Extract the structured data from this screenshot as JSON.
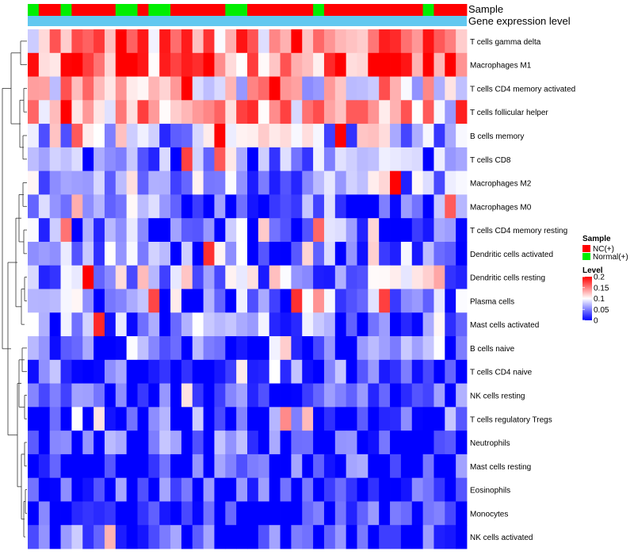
{
  "chart_data": {
    "type": "heatmap",
    "title": "",
    "annotation_rows": [
      {
        "name": "Sample",
        "label": "Sample"
      },
      {
        "name": "Gene expression level",
        "label": "Gene expression level"
      }
    ],
    "rows": [
      "T cells gamma delta",
      "Macrophages M1",
      "T cells CD4 memory activated",
      "T cells follicular helper",
      "B cells memory",
      "T cells CD8",
      "Macrophages M2",
      "Macrophages M0",
      "T cells CD4 memory resting",
      "Dendritic cells activated",
      "Dendritic cells resting",
      "Plasma cells",
      "Mast cells activated",
      "B cells naive",
      "T cells CD4 naive",
      "NK cells resting",
      "T cells regulatory  Tregs",
      "Neutrophils",
      "Mast cells resting",
      "Eosinophils",
      "Monocytes",
      "NK cells activated"
    ],
    "sample_groups": [
      "N",
      "R",
      "R",
      "N",
      "R",
      "R",
      "R",
      "R",
      "N",
      "N",
      "R",
      "N",
      "N",
      "R",
      "R",
      "R",
      "R",
      "R",
      "N",
      "N",
      "R",
      "R",
      "R",
      "R",
      "R",
      "R",
      "N",
      "R",
      "R",
      "R",
      "R",
      "R",
      "R",
      "R",
      "R",
      "R",
      "N",
      "R",
      "R",
      "R"
    ],
    "legend": {
      "sample_title": "Sample",
      "sample_entries": [
        {
          "key": "R",
          "label": "NC(+)",
          "color": "#ff0000"
        },
        {
          "key": "N",
          "label": "Normal(+)",
          "color": "#00ee00"
        }
      ],
      "level_title": "Level",
      "level_ticks": [
        "0.2",
        "0.15",
        "0.1",
        "0.05",
        "0"
      ],
      "level_tick_values": [
        0.2,
        0.15,
        0.1,
        0.05,
        0
      ]
    },
    "value_range": [
      0,
      0.2
    ],
    "color_scale": {
      "low": "#0000ff",
      "mid": "#ffffff",
      "high": "#ff0000",
      "midpoint": 0.1
    },
    "expression_bar_color": "#62c8f0",
    "columns": 40
  }
}
